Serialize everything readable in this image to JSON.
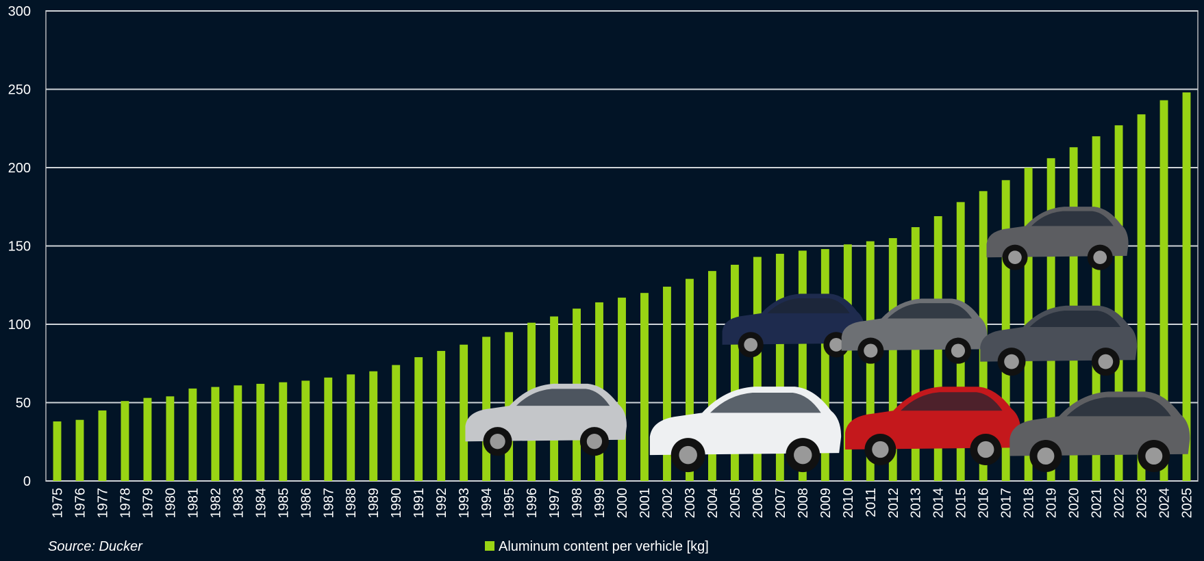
{
  "chart_data": {
    "type": "bar",
    "categories": [
      "1975",
      "1976",
      "1977",
      "1978",
      "1979",
      "1980",
      "1981",
      "1982",
      "1983",
      "1984",
      "1985",
      "1986",
      "1987",
      "1988",
      "1989",
      "1990",
      "1991",
      "1992",
      "1993",
      "1994",
      "1995",
      "1996",
      "1997",
      "1998",
      "1999",
      "2000",
      "2001",
      "2002",
      "2003",
      "2004",
      "2005",
      "2006",
      "2007",
      "2008",
      "2009",
      "2010",
      "2011",
      "2012",
      "2013",
      "2014",
      "2015",
      "2016",
      "2017",
      "2018",
      "2019",
      "2020",
      "2021",
      "2022",
      "2023",
      "2024",
      "2025"
    ],
    "series": [
      {
        "name": "Aluminum content per verhicle [kg]",
        "color": "#99d414",
        "values": [
          38,
          39,
          45,
          51,
          53,
          54,
          59,
          60,
          61,
          62,
          63,
          64,
          66,
          68,
          70,
          74,
          79,
          83,
          87,
          92,
          95,
          101,
          105,
          110,
          114,
          117,
          120,
          124,
          129,
          134,
          138,
          143,
          145,
          147,
          148,
          151,
          153,
          155,
          162,
          169,
          178,
          185,
          192,
          200,
          206,
          213,
          220,
          227,
          234,
          243,
          248
        ]
      }
    ],
    "ylim": [
      0,
      300
    ],
    "yticks": [
      0,
      50,
      100,
      150,
      200,
      250,
      300
    ],
    "grid": true,
    "source": "Source: Ducker"
  }
}
